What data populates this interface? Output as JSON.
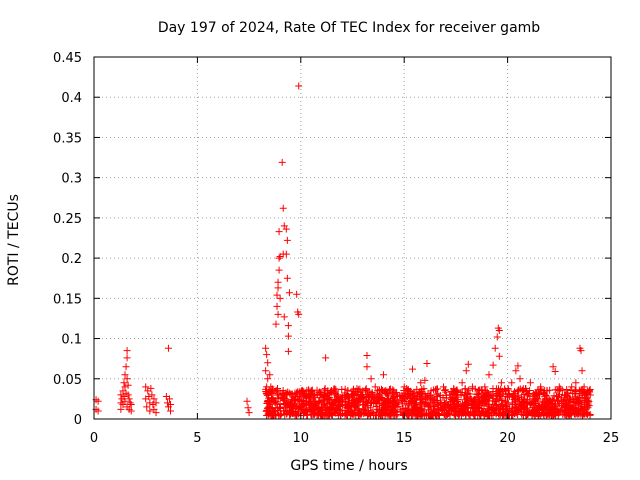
{
  "chart_data": {
    "type": "scatter",
    "title": "Day 197 of 2024, Rate Of TEC Index for receiver gamb",
    "xlabel": "GPS time / hours",
    "ylabel": "ROTI / TECUs",
    "xlim": [
      0,
      25
    ],
    "ylim": [
      0,
      0.45
    ],
    "xticks": [
      0,
      5,
      10,
      15,
      20,
      25
    ],
    "xtick_labels": [
      "0",
      "5",
      "10",
      "15",
      "20",
      "25"
    ],
    "yticks": [
      0,
      0.05,
      0.1,
      0.15,
      0.2,
      0.25,
      0.3,
      0.35,
      0.4,
      0.45
    ],
    "ytick_labels": [
      "0",
      "0.05",
      "0.1",
      "0.15",
      "0.2",
      "0.25",
      "0.3",
      "0.35",
      "0.4",
      "0.45"
    ],
    "grid": true,
    "marker": "+",
    "color": "#ff0000",
    "series": [
      {
        "name": "ROTI",
        "points": [
          [
            0.1,
            0.024
          ],
          [
            0.1,
            0.012
          ],
          [
            0.2,
            0.022
          ],
          [
            0.2,
            0.01
          ],
          [
            1.3,
            0.03
          ],
          [
            1.3,
            0.02
          ],
          [
            1.3,
            0.012
          ],
          [
            1.35,
            0.025
          ],
          [
            1.4,
            0.035
          ],
          [
            1.4,
            0.018
          ],
          [
            1.45,
            0.045
          ],
          [
            1.45,
            0.028
          ],
          [
            1.5,
            0.055
          ],
          [
            1.5,
            0.04
          ],
          [
            1.5,
            0.022
          ],
          [
            1.55,
            0.065
          ],
          [
            1.55,
            0.032
          ],
          [
            1.6,
            0.085
          ],
          [
            1.6,
            0.076
          ],
          [
            1.6,
            0.05
          ],
          [
            1.6,
            0.015
          ],
          [
            1.65,
            0.042
          ],
          [
            1.65,
            0.03
          ],
          [
            1.7,
            0.025
          ],
          [
            1.7,
            0.012
          ],
          [
            1.75,
            0.02
          ],
          [
            1.8,
            0.018
          ],
          [
            1.8,
            0.01
          ],
          [
            2.5,
            0.04
          ],
          [
            2.5,
            0.025
          ],
          [
            2.55,
            0.015
          ],
          [
            2.6,
            0.035
          ],
          [
            2.65,
            0.028
          ],
          [
            2.7,
            0.02
          ],
          [
            2.7,
            0.01
          ],
          [
            2.75,
            0.038
          ],
          [
            2.8,
            0.03
          ],
          [
            2.85,
            0.018
          ],
          [
            2.9,
            0.025
          ],
          [
            2.9,
            0.012
          ],
          [
            3.0,
            0.02
          ],
          [
            3.0,
            0.008
          ],
          [
            3.5,
            0.028
          ],
          [
            3.55,
            0.02
          ],
          [
            3.6,
            0.088
          ],
          [
            3.6,
            0.015
          ],
          [
            3.65,
            0.025
          ],
          [
            3.7,
            0.01
          ],
          [
            3.7,
            0.018
          ],
          [
            7.4,
            0.022
          ],
          [
            7.45,
            0.014
          ],
          [
            7.5,
            0.008
          ],
          [
            8.3,
            0.088
          ],
          [
            8.3,
            0.06
          ],
          [
            8.35,
            0.08
          ],
          [
            8.35,
            0.04
          ],
          [
            8.4,
            0.07
          ],
          [
            8.4,
            0.05
          ],
          [
            8.4,
            0.02
          ],
          [
            8.45,
            0.03
          ],
          [
            8.5,
            0.055
          ],
          [
            8.5,
            0.018
          ],
          [
            8.55,
            0.04
          ],
          [
            8.6,
            0.025
          ],
          [
            8.6,
            0.01
          ],
          [
            8.7,
            0.022
          ],
          [
            8.8,
            0.118
          ],
          [
            8.8,
            0.035
          ],
          [
            8.85,
            0.14
          ],
          [
            8.85,
            0.154
          ],
          [
            8.9,
            0.17
          ],
          [
            8.9,
            0.163
          ],
          [
            8.9,
            0.13
          ],
          [
            8.9,
            0.025
          ],
          [
            8.95,
            0.185
          ],
          [
            8.95,
            0.2
          ],
          [
            8.95,
            0.233
          ],
          [
            9.0,
            0.202
          ],
          [
            9.0,
            0.15
          ],
          [
            9.0,
            0.018
          ],
          [
            9.1,
            0.319
          ],
          [
            9.15,
            0.262
          ],
          [
            9.15,
            0.205
          ],
          [
            9.2,
            0.24
          ],
          [
            9.2,
            0.127
          ],
          [
            9.3,
            0.236
          ],
          [
            9.3,
            0.205
          ],
          [
            9.3,
            0.03
          ],
          [
            9.35,
            0.222
          ],
          [
            9.35,
            0.175
          ],
          [
            9.4,
            0.116
          ],
          [
            9.4,
            0.103
          ],
          [
            9.4,
            0.084
          ],
          [
            9.45,
            0.157
          ],
          [
            9.5,
            0.02
          ],
          [
            9.8,
            0.155
          ],
          [
            9.85,
            0.133
          ],
          [
            9.9,
            0.414
          ],
          [
            9.9,
            0.13
          ],
          [
            9.7,
            0.025
          ],
          [
            9.8,
            0.015
          ],
          [
            10.0,
            0.03
          ],
          [
            10.1,
            0.018
          ],
          [
            10.3,
            0.028
          ],
          [
            10.5,
            0.022
          ],
          [
            10.8,
            0.03
          ],
          [
            11.0,
            0.02
          ],
          [
            11.2,
            0.076
          ],
          [
            11.3,
            0.025
          ],
          [
            11.5,
            0.018
          ],
          [
            11.8,
            0.03
          ],
          [
            12.0,
            0.022
          ],
          [
            12.3,
            0.028
          ],
          [
            12.6,
            0.02
          ],
          [
            13.0,
            0.035
          ],
          [
            13.2,
            0.079
          ],
          [
            13.2,
            0.065
          ],
          [
            13.4,
            0.05
          ],
          [
            13.6,
            0.04
          ],
          [
            13.8,
            0.03
          ],
          [
            14.0,
            0.055
          ],
          [
            14.2,
            0.025
          ],
          [
            14.5,
            0.035
          ],
          [
            14.8,
            0.028
          ],
          [
            15.0,
            0.04
          ],
          [
            15.2,
            0.03
          ],
          [
            15.4,
            0.062
          ],
          [
            15.6,
            0.025
          ],
          [
            15.8,
            0.045
          ],
          [
            16.0,
            0.048
          ],
          [
            16.1,
            0.069
          ],
          [
            16.3,
            0.035
          ],
          [
            16.6,
            0.028
          ],
          [
            16.9,
            0.04
          ],
          [
            17.2,
            0.03
          ],
          [
            17.5,
            0.035
          ],
          [
            17.8,
            0.045
          ],
          [
            18.0,
            0.06
          ],
          [
            18.1,
            0.068
          ],
          [
            18.3,
            0.04
          ],
          [
            18.6,
            0.03
          ],
          [
            18.9,
            0.04
          ],
          [
            19.1,
            0.055
          ],
          [
            19.3,
            0.067
          ],
          [
            19.4,
            0.088
          ],
          [
            19.5,
            0.102
          ],
          [
            19.55,
            0.113
          ],
          [
            19.6,
            0.11
          ],
          [
            19.6,
            0.078
          ],
          [
            19.7,
            0.045
          ],
          [
            19.9,
            0.035
          ],
          [
            20.2,
            0.045
          ],
          [
            20.4,
            0.06
          ],
          [
            20.5,
            0.066
          ],
          [
            20.6,
            0.05
          ],
          [
            20.9,
            0.035
          ],
          [
            21.1,
            0.045
          ],
          [
            21.3,
            0.03
          ],
          [
            21.6,
            0.04
          ],
          [
            21.9,
            0.035
          ],
          [
            22.2,
            0.065
          ],
          [
            22.3,
            0.059
          ],
          [
            22.5,
            0.04
          ],
          [
            22.8,
            0.03
          ],
          [
            23.1,
            0.04
          ],
          [
            23.3,
            0.045
          ],
          [
            23.5,
            0.088
          ],
          [
            23.55,
            0.085
          ],
          [
            23.6,
            0.06
          ],
          [
            23.7,
            0.04
          ],
          [
            23.8,
            0.03
          ],
          [
            23.9,
            0.02
          ]
        ],
        "dense_bands": [
          {
            "x_start": 8.3,
            "x_end": 24.0,
            "y_min": 0.004,
            "y_max": 0.038
          }
        ]
      }
    ]
  }
}
